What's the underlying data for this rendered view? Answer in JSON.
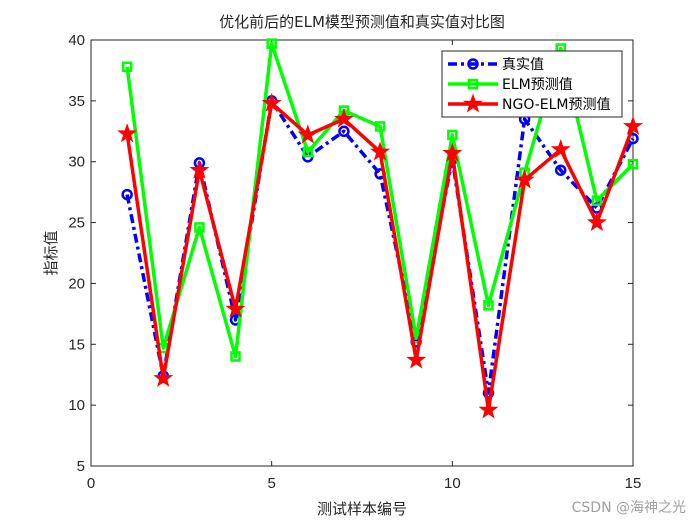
{
  "chart_data": {
    "type": "line",
    "title": "优化前后的ELM模型预测值和真实值对比图",
    "xlabel": "测试样本编号",
    "ylabel": "指标值",
    "xlim": [
      0,
      15
    ],
    "ylim": [
      5,
      40
    ],
    "xticks": [
      0,
      5,
      10,
      15
    ],
    "yticks": [
      5,
      10,
      15,
      20,
      25,
      30,
      35,
      40
    ],
    "grid": false,
    "legend_position": "northeast",
    "x": [
      1,
      2,
      3,
      4,
      5,
      6,
      7,
      8,
      9,
      10,
      11,
      12,
      13,
      14,
      15
    ],
    "series": [
      {
        "name": "真实值",
        "color": "#0000ff",
        "line_style": "dash-dot",
        "marker": "circle",
        "values": [
          27.3,
          12.4,
          29.9,
          17.0,
          35.0,
          30.4,
          32.5,
          29.0,
          15.2,
          30.2,
          11.0,
          33.5,
          29.3,
          26.2,
          31.9
        ]
      },
      {
        "name": "ELM预测值",
        "color": "#00ff00",
        "line_style": "solid",
        "marker": "square",
        "values": [
          37.8,
          14.7,
          24.6,
          14.0,
          39.7,
          30.8,
          34.2,
          32.9,
          15.5,
          32.2,
          18.2,
          29.1,
          39.3,
          26.8,
          29.8
        ]
      },
      {
        "name": "NGO-ELM预测值",
        "color": "#ff0000",
        "line_style": "solid",
        "marker": "star",
        "values": [
          32.3,
          12.2,
          29.3,
          17.9,
          34.8,
          32.2,
          33.5,
          30.8,
          13.7,
          30.7,
          9.6,
          28.5,
          31.0,
          25.0,
          32.9
        ]
      }
    ]
  },
  "watermark": "CSDN @海神之光"
}
